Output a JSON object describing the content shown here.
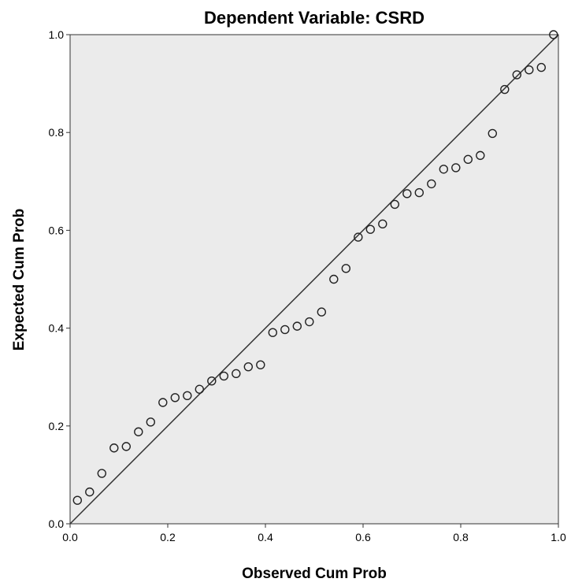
{
  "chart_data": {
    "type": "scatter",
    "title": "Dependent Variable: CSRD",
    "xlabel": "Observed Cum Prob",
    "ylabel": "Expected Cum Prob",
    "xlim": [
      0,
      1
    ],
    "ylim": [
      0,
      1
    ],
    "x_ticks": [
      "0.0",
      "0.2",
      "0.4",
      "0.6",
      "0.8",
      "1.0"
    ],
    "y_ticks": [
      "0.0",
      "0.2",
      "0.4",
      "0.6",
      "0.8",
      "1.0"
    ],
    "grid": false,
    "reference_line": {
      "from": [
        0,
        0
      ],
      "to": [
        1,
        1
      ]
    },
    "marker": "open-circle",
    "plot_background": "#ebebeb",
    "series": [
      {
        "points": [
          [
            0.015,
            0.048
          ],
          [
            0.04,
            0.065
          ],
          [
            0.065,
            0.103
          ],
          [
            0.09,
            0.155
          ],
          [
            0.115,
            0.158
          ],
          [
            0.14,
            0.188
          ],
          [
            0.165,
            0.208
          ],
          [
            0.19,
            0.248
          ],
          [
            0.215,
            0.258
          ],
          [
            0.24,
            0.262
          ],
          [
            0.265,
            0.275
          ],
          [
            0.29,
            0.292
          ],
          [
            0.315,
            0.302
          ],
          [
            0.34,
            0.307
          ],
          [
            0.365,
            0.321
          ],
          [
            0.39,
            0.325
          ],
          [
            0.415,
            0.391
          ],
          [
            0.44,
            0.397
          ],
          [
            0.465,
            0.404
          ],
          [
            0.49,
            0.413
          ],
          [
            0.515,
            0.433
          ],
          [
            0.54,
            0.5
          ],
          [
            0.565,
            0.522
          ],
          [
            0.59,
            0.586
          ],
          [
            0.615,
            0.602
          ],
          [
            0.64,
            0.613
          ],
          [
            0.665,
            0.653
          ],
          [
            0.69,
            0.675
          ],
          [
            0.715,
            0.677
          ],
          [
            0.74,
            0.695
          ],
          [
            0.765,
            0.725
          ],
          [
            0.79,
            0.728
          ],
          [
            0.815,
            0.745
          ],
          [
            0.84,
            0.753
          ],
          [
            0.865,
            0.798
          ],
          [
            0.89,
            0.888
          ],
          [
            0.915,
            0.918
          ],
          [
            0.94,
            0.928
          ],
          [
            0.965,
            0.933
          ],
          [
            0.99,
            1.0
          ]
        ]
      }
    ]
  }
}
